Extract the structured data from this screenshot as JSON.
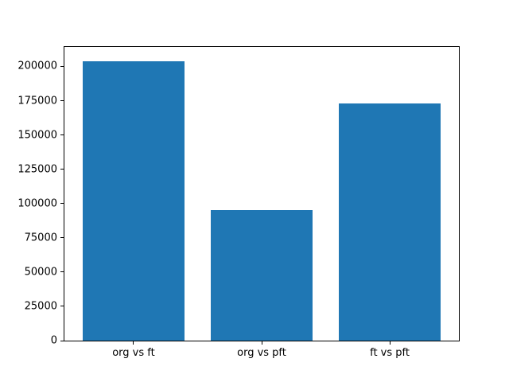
{
  "figure": {
    "background": "#ffffff",
    "spine_color": "#000000",
    "tick_label_color": "#000000"
  },
  "chart_data": {
    "type": "bar",
    "categories": [
      "org vs ft",
      "org vs pft",
      "ft vs pft"
    ],
    "values": [
      204000,
      95000,
      173000
    ],
    "title": "",
    "xlabel": "",
    "ylabel": "",
    "ylim": [
      0,
      214200
    ],
    "xlim": [
      -0.54,
      2.54
    ],
    "yticks": [
      0,
      25000,
      50000,
      75000,
      100000,
      125000,
      150000,
      175000,
      200000
    ],
    "ytick_labels": [
      "0",
      "25000",
      "50000",
      "75000",
      "100000",
      "125000",
      "150000",
      "175000",
      "200000"
    ],
    "bar_width": 0.8,
    "bar_color": "#1f77b4",
    "grid": false,
    "legend_position": null
  }
}
